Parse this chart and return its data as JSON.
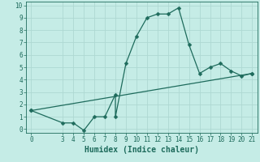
{
  "xlabel": "Humidex (Indice chaleur)",
  "bg_color": "#c5ece6",
  "grid_color": "#aed8d2",
  "line_color": "#1e6b5c",
  "line1_x": [
    0,
    3,
    4,
    5,
    6,
    7,
    8,
    8,
    9,
    10,
    11,
    12,
    13,
    14,
    15,
    16,
    17,
    18,
    19,
    20,
    21
  ],
  "line1_y": [
    1.5,
    0.5,
    0.5,
    -0.1,
    1.0,
    1.0,
    2.8,
    1.0,
    5.3,
    7.5,
    9.0,
    9.3,
    9.3,
    9.8,
    6.8,
    4.5,
    5.0,
    5.3,
    4.7,
    4.3,
    4.5
  ],
  "line2_x": [
    0,
    21
  ],
  "line2_y": [
    1.5,
    4.5
  ],
  "xlim": [
    -0.5,
    21.5
  ],
  "ylim": [
    -0.3,
    10.3
  ],
  "xticks": [
    0,
    3,
    4,
    5,
    6,
    7,
    8,
    9,
    10,
    11,
    12,
    13,
    14,
    15,
    16,
    17,
    18,
    19,
    20,
    21
  ],
  "yticks": [
    0,
    1,
    2,
    3,
    4,
    5,
    6,
    7,
    8,
    9,
    10
  ],
  "markersize": 2.5,
  "linewidth": 0.9,
  "xlabel_fontsize": 7,
  "tick_fontsize": 5.5,
  "fig_width": 3.2,
  "fig_height": 2.0,
  "dpi": 100
}
